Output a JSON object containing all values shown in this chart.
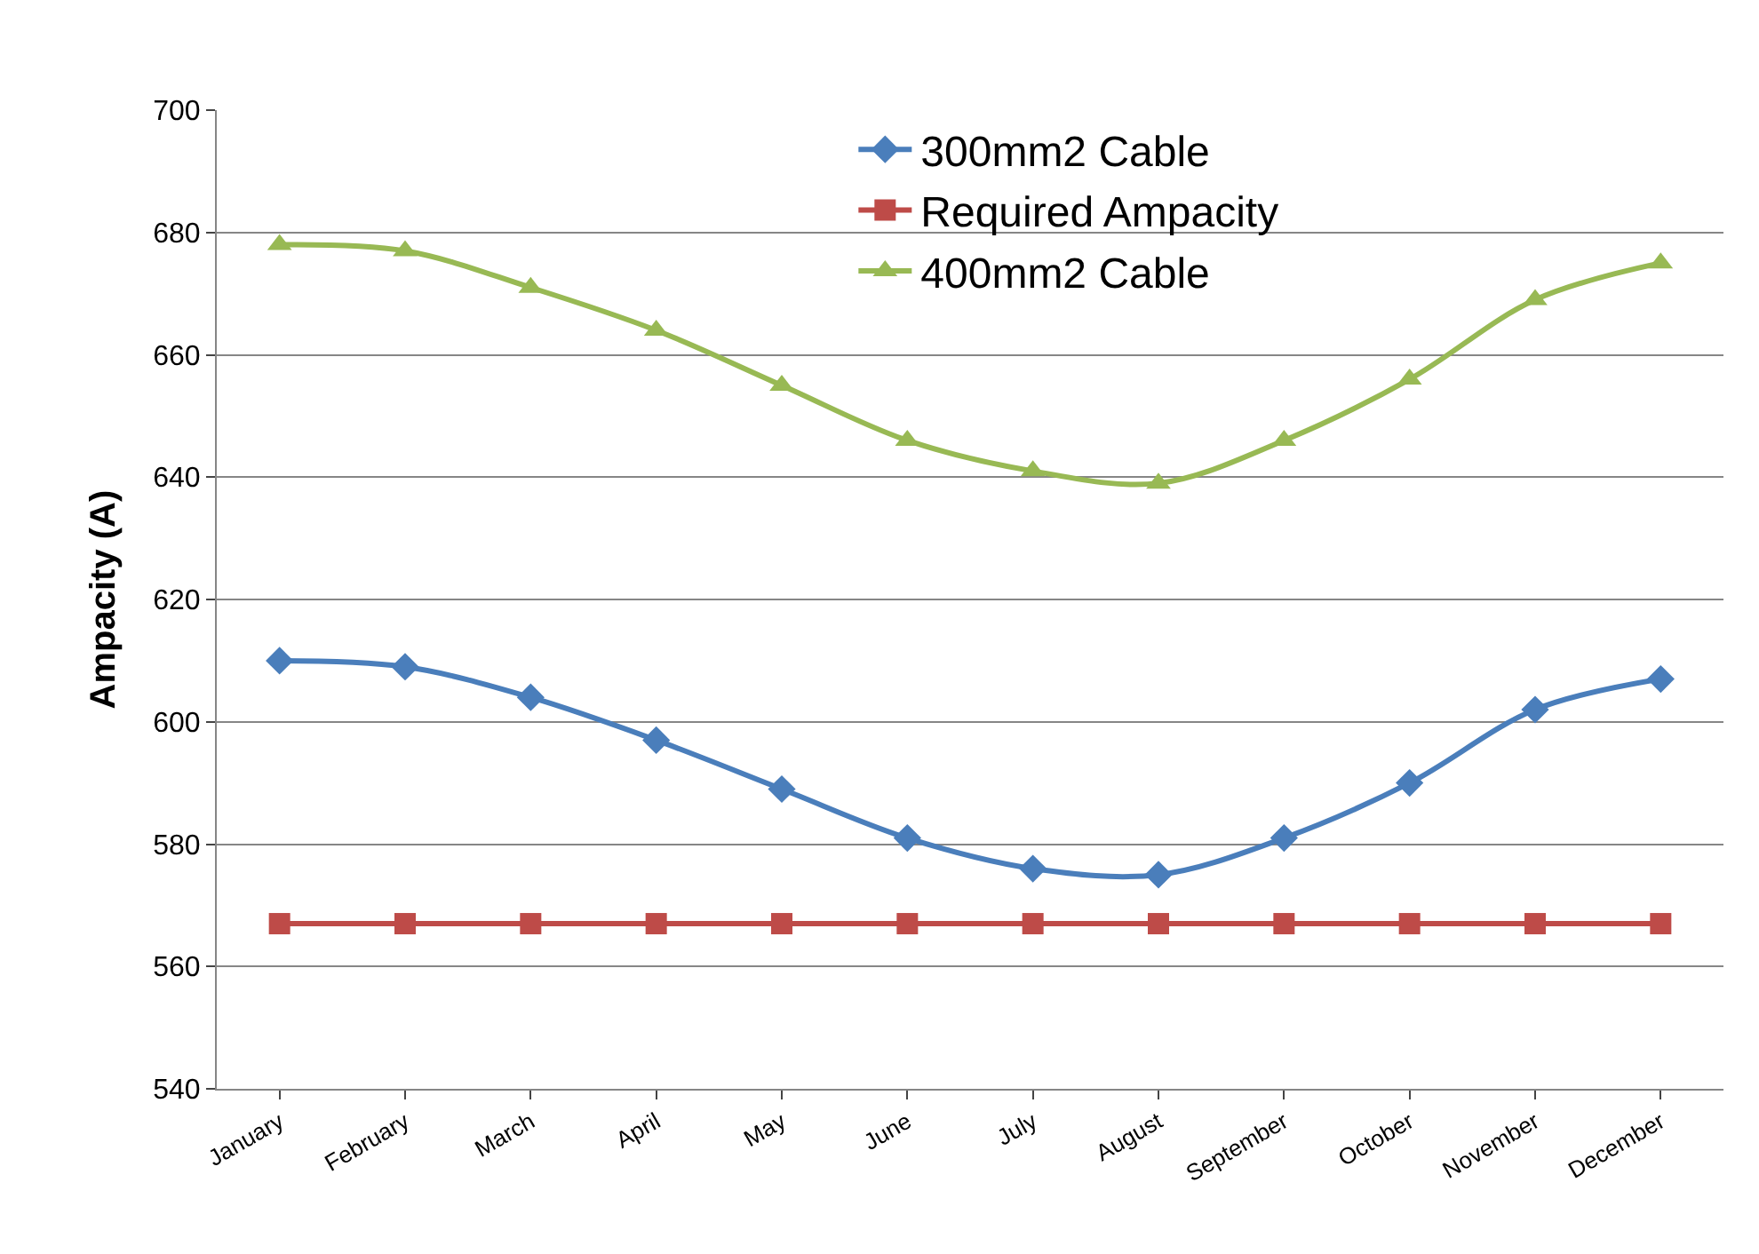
{
  "chart_data": {
    "type": "line",
    "ylabel": "Ampacity (A)",
    "categories": [
      "January",
      "February",
      "March",
      "April",
      "May",
      "June",
      "July",
      "August",
      "September",
      "October",
      "November",
      "December"
    ],
    "series": [
      {
        "name": "300mm2 Cable",
        "color": "#4a7ebb",
        "marker": "diamond",
        "values": [
          610,
          609,
          604,
          597,
          589,
          581,
          576,
          575,
          581,
          590,
          602,
          607
        ]
      },
      {
        "name": "Required Ampacity",
        "color": "#be4b48",
        "marker": "square",
        "values": [
          567,
          567,
          567,
          567,
          567,
          567,
          567,
          567,
          567,
          567,
          567,
          567
        ]
      },
      {
        "name": "400mm2 Cable",
        "color": "#98b954",
        "marker": "triangle",
        "values": [
          678,
          677,
          671,
          664,
          655,
          646,
          641,
          639,
          646,
          656,
          669,
          675
        ]
      }
    ],
    "ylim": [
      540,
      700
    ],
    "yticks": [
      540,
      560,
      580,
      600,
      620,
      640,
      660,
      680,
      700
    ],
    "grid": "y",
    "legend": "top",
    "line_style": "solid"
  }
}
